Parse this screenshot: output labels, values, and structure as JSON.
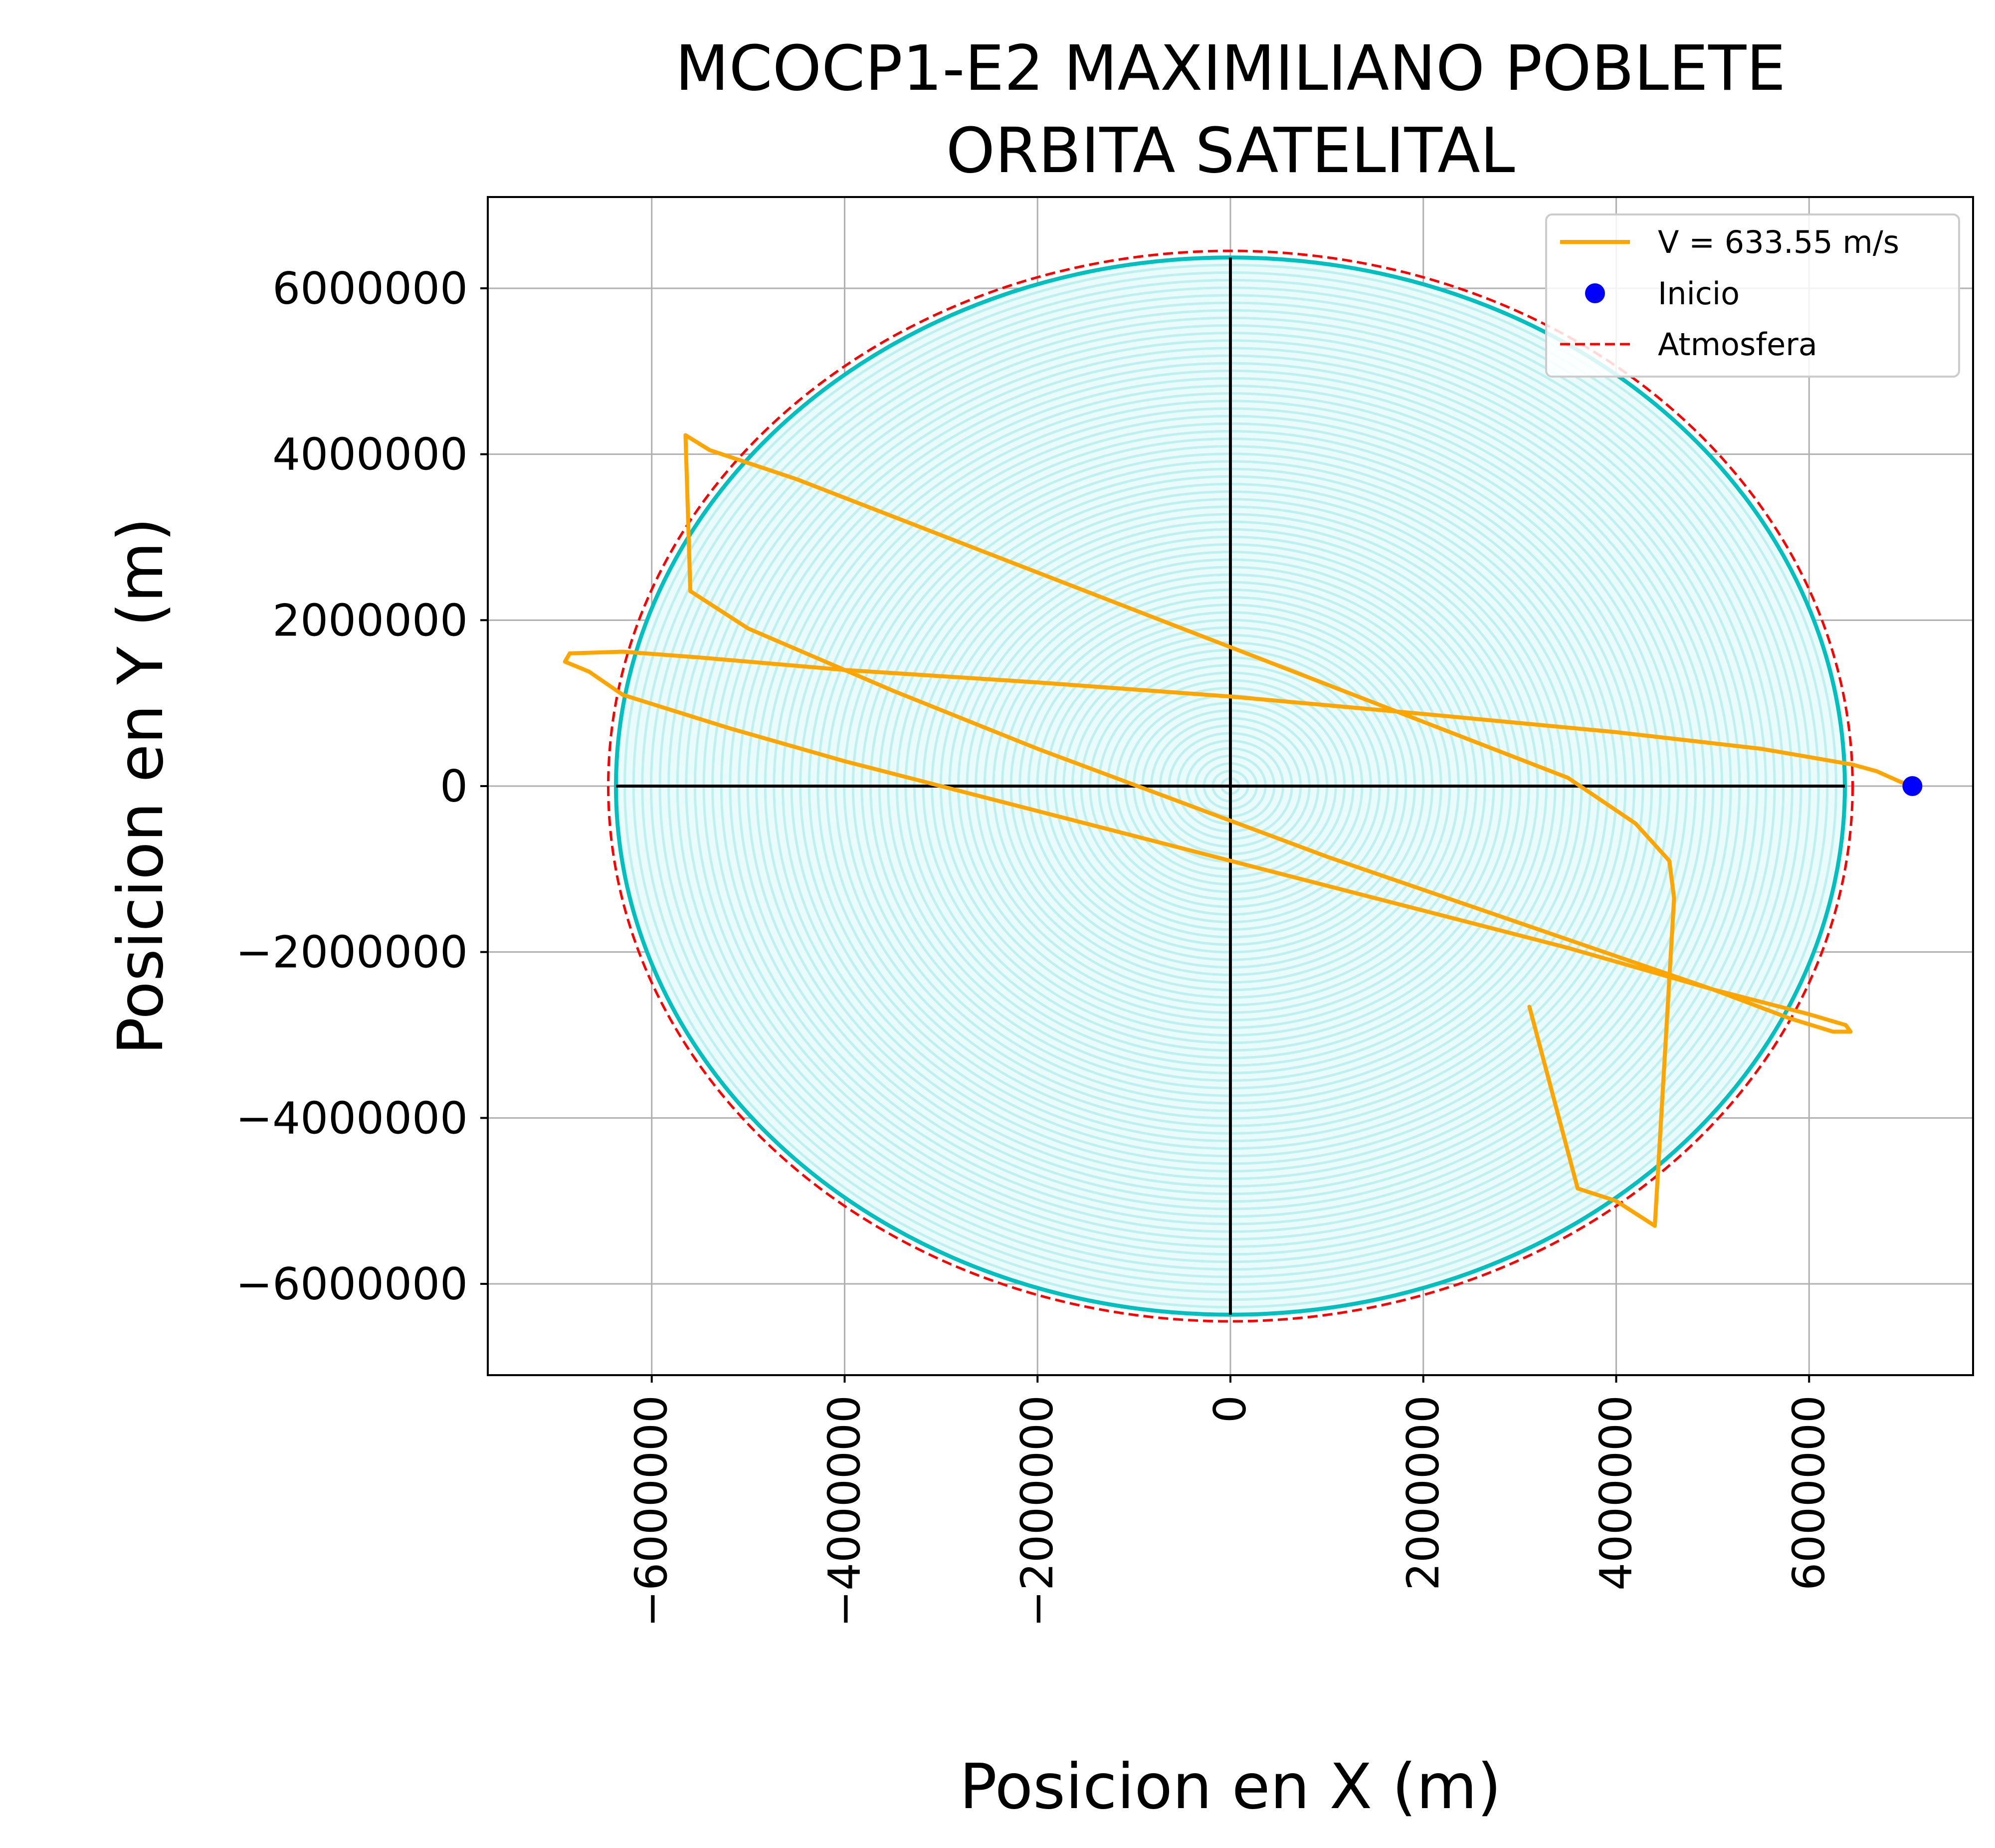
{
  "chart_data": {
    "type": "line",
    "title": [
      "MCOCP1-E2 MAXIMILIANO POBLETE",
      "ORBITA SATELITAL"
    ],
    "xlabel": "Posicion en X (m)",
    "ylabel": "Posicion en Y (m)",
    "xlim": [
      -7700000,
      7700000
    ],
    "ylim": [
      -7100000,
      7100000
    ],
    "grid": true,
    "xticks": [
      -6000000,
      -4000000,
      -2000000,
      0,
      2000000,
      4000000,
      6000000
    ],
    "xtick_labels": [
      "−6000000",
      "−4000000",
      "−2000000",
      "0",
      "2000000",
      "4000000",
      "6000000"
    ],
    "yticks": [
      6000000,
      4000000,
      2000000,
      0,
      -2000000,
      -4000000,
      -6000000
    ],
    "ytick_labels": [
      "6000000",
      "4000000",
      "2000000",
      "0",
      "−2000000",
      "−4000000",
      "−6000000"
    ],
    "earth": {
      "radius": 6371000,
      "edge_color": "#00bfbf",
      "fill_color": "#bff0f0"
    },
    "atmosphere": {
      "name": "Atmosfera",
      "radius": 6451000,
      "color": "#ff0000",
      "style": "dashed"
    },
    "axes_lines": {
      "color": "#000000"
    },
    "start_point": {
      "name": "Inicio",
      "x": 7071000,
      "y": 0,
      "color": "#0000ff"
    },
    "series": [
      {
        "name": "V = 633.55 m/s",
        "color": "#ffa500",
        "x": [
          7071000,
          6950000,
          6700000,
          6450000,
          5500000,
          4000000,
          2000000,
          0,
          -2000000,
          -4000000,
          -5500000,
          -6300000,
          -6850000,
          -6900000,
          -6650000,
          -6300000,
          -5200000,
          -4000000,
          -2500000,
          -1000000,
          500000,
          2000000,
          3500000,
          5000000,
          6000000,
          6380000,
          6430000,
          6250000,
          5800000,
          5000000,
          4000000,
          2500000,
          1000000,
          -500000,
          -2000000,
          -3500000,
          -5000000,
          -5600000,
          -5650000,
          -5400000,
          -4500000,
          -3500000,
          -2500000,
          -1500000,
          -500000,
          500000,
          1500000,
          2500000,
          3500000,
          4200000,
          4550000,
          4600000,
          4400000,
          4000000,
          3600000,
          3100000
        ],
        "y": [
          0,
          50000,
          180000,
          260000,
          450000,
          650000,
          870000,
          1080000,
          1250000,
          1400000,
          1550000,
          1620000,
          1600000,
          1500000,
          1380000,
          1100000,
          700000,
          300000,
          -150000,
          -600000,
          -1050000,
          -1500000,
          -1950000,
          -2450000,
          -2750000,
          -2880000,
          -2960000,
          -2960000,
          -2800000,
          -2450000,
          -2050000,
          -1450000,
          -850000,
          -200000,
          450000,
          1150000,
          1900000,
          2350000,
          4230000,
          4050000,
          3700000,
          3250000,
          2800000,
          2350000,
          1900000,
          1450000,
          1000000,
          550000,
          100000,
          -450000,
          -900000,
          -1350000,
          -5300000,
          -5000000,
          -4850000,
          -2660000
        ]
      }
    ],
    "legend": {
      "placement": "top-right",
      "entries": [
        "V = 633.55 m/s",
        "Inicio",
        "Atmosfera"
      ]
    }
  }
}
